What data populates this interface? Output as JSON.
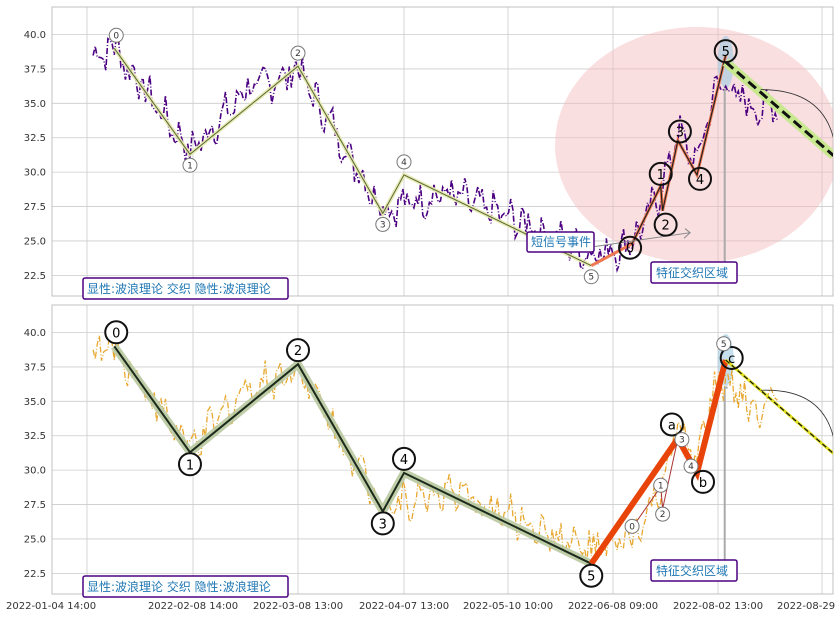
{
  "chart_data": [
    {
      "type": "line",
      "panel": "top",
      "ylim": [
        21,
        42
      ],
      "yticks": [
        22.5,
        25.0,
        27.5,
        30.0,
        32.5,
        35.0,
        37.5,
        40.0
      ],
      "ytick_labels": [
        "22.5",
        "25.0",
        "27.5",
        "30.0",
        "32.5",
        "35.0",
        "37.5",
        "40.0"
      ],
      "grid": true,
      "price_color": "#4b0082",
      "wave_color": "#556b2f",
      "wave_points": [
        {
          "x": "2022-01-13",
          "y": 39.0,
          "label": "0"
        },
        {
          "x": "2022-02-07",
          "y": 31.3,
          "label": "1"
        },
        {
          "x": "2022-03-08",
          "y": 37.7,
          "label": "2"
        },
        {
          "x": "2022-04-01",
          "y": 27.0,
          "label": "3"
        },
        {
          "x": "2022-04-07",
          "y": 29.8,
          "label": "4"
        },
        {
          "x": "2022-06-02",
          "y": 23.2,
          "label": "5"
        }
      ],
      "projection_points": [
        {
          "x": "2022-06-18",
          "y": 24.8,
          "label": "0"
        },
        {
          "x": "2022-07-03",
          "y": 29.0,
          "label": "1"
        },
        {
          "x": "2022-07-04",
          "y": 27.2,
          "label": "2"
        },
        {
          "x": "2022-07-12",
          "y": 32.3,
          "label": "3"
        },
        {
          "x": "2022-07-22",
          "y": 29.8,
          "label": "4"
        },
        {
          "x": "2022-08-04",
          "y": 38.5,
          "label": "5"
        }
      ],
      "projection_color": "#f07850",
      "forecast_line": {
        "from": {
          "x": "2022-08-04",
          "y": 38.0
        },
        "to": {
          "x": "2022-09-01",
          "y": 31.2
        },
        "color": "#c8e890"
      },
      "annotations": [
        "短信号事件",
        "特征交织区域"
      ],
      "legend_text": "显性:波浪理论 交织 隐性:波浪理论"
    },
    {
      "type": "line",
      "panel": "bottom",
      "ylim": [
        21,
        42
      ],
      "yticks": [
        22.5,
        25.0,
        27.5,
        30.0,
        32.5,
        35.0,
        37.5,
        40.0
      ],
      "ytick_labels": [
        "22.5",
        "25.0",
        "27.5",
        "30.0",
        "32.5",
        "35.0",
        "37.5",
        "40.0"
      ],
      "grid": true,
      "price_color": "#e8a830",
      "wave_color": "#1b2a1b",
      "wave_points": [
        {
          "x": "2022-01-13",
          "y": 39.0,
          "label": "0"
        },
        {
          "x": "2022-02-07",
          "y": 31.3,
          "label": "1"
        },
        {
          "x": "2022-03-08",
          "y": 37.7,
          "label": "2"
        },
        {
          "x": "2022-04-01",
          "y": 27.0,
          "label": "3"
        },
        {
          "x": "2022-04-07",
          "y": 29.8,
          "label": "4"
        },
        {
          "x": "2022-06-02",
          "y": 23.2,
          "label": "5"
        }
      ],
      "correction_points": [
        {
          "x": "2022-06-02",
          "y": 23.2
        },
        {
          "x": "2022-07-12",
          "y": 32.3,
          "label": "a"
        },
        {
          "x": "2022-07-22",
          "y": 29.8,
          "label": "b"
        },
        {
          "x": "2022-08-04",
          "y": 38.0,
          "label": "c"
        }
      ],
      "correction_color": "#e8440a",
      "minor_labels": [
        "0",
        "1",
        "2",
        "3",
        "4",
        "5"
      ],
      "forecast_line": {
        "from": {
          "x": "2022-08-04",
          "y": 38.0
        },
        "to": {
          "x": "2022-09-01",
          "y": 31.2
        },
        "color": "#e0e020"
      },
      "annotations": [
        "特征交织区域"
      ],
      "legend_text": "显性:波浪理论 交织 隐性:波浪理论"
    }
  ],
  "x_axis": {
    "ticks": [
      "2022-01-04 14:00",
      "2022-02-08 14:00",
      "2022-03-08 13:00",
      "2022-04-07 13:00",
      "2022-05-10 10:00",
      "2022-06-08 09:00",
      "2022-08-02 13:00",
      "2022-08-29 09:00"
    ],
    "tick_dates": [
      "2022-01-04",
      "2022-02-08",
      "2022-03-08",
      "2022-04-07",
      "2022-05-10",
      "2022-06-08",
      "2022-08-02",
      "2022-08-29"
    ]
  }
}
